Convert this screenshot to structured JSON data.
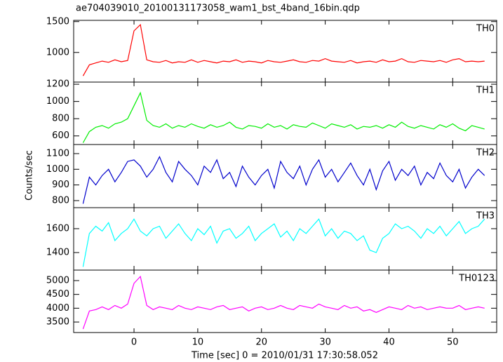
{
  "chart_data": [
    {
      "type": "line",
      "title": "ae704039010_20100131173058_wam1_bst_4band_16bin.qdp",
      "x": [
        -8,
        -7,
        -6,
        -5,
        -4,
        -3,
        -2,
        -1,
        0,
        1,
        2,
        3,
        4,
        5,
        6,
        7,
        8,
        9,
        10,
        11,
        12,
        13,
        14,
        15,
        16,
        17,
        18,
        19,
        20,
        21,
        22,
        23,
        24,
        25,
        26,
        27,
        28,
        29,
        30,
        31,
        32,
        33,
        34,
        35,
        36,
        37,
        38,
        39,
        40,
        41,
        42,
        43,
        44,
        45,
        46,
        47,
        48,
        49,
        50,
        51,
        52,
        53,
        54,
        55
      ],
      "series": [
        {
          "name": "TH0",
          "color": "#ff0000",
          "values": [
            620,
            800,
            830,
            860,
            840,
            880,
            850,
            870,
            1350,
            1450,
            880,
            850,
            840,
            870,
            830,
            850,
            840,
            880,
            840,
            870,
            850,
            830,
            860,
            850,
            880,
            840,
            860,
            850,
            830,
            870,
            850,
            840,
            860,
            880,
            850,
            840,
            870,
            860,
            900,
            860,
            850,
            840,
            870,
            830,
            850,
            860,
            840,
            880,
            850,
            860,
            900,
            850,
            840,
            870,
            860,
            850,
            870,
            840,
            880,
            900,
            850,
            860,
            850,
            860
          ]
        }
      ],
      "xlim": [
        -9.47,
        56.9
      ],
      "ylim": [
        520,
        1520
      ],
      "yticks": [
        1000,
        1500
      ]
    },
    {
      "type": "line",
      "x": [
        -8,
        -7,
        -6,
        -5,
        -4,
        -3,
        -2,
        -1,
        0,
        1,
        2,
        3,
        4,
        5,
        6,
        7,
        8,
        9,
        10,
        11,
        12,
        13,
        14,
        15,
        16,
        17,
        18,
        19,
        20,
        21,
        22,
        23,
        24,
        25,
        26,
        27,
        28,
        29,
        30,
        31,
        32,
        33,
        34,
        35,
        36,
        37,
        38,
        39,
        40,
        41,
        42,
        43,
        44,
        45,
        46,
        47,
        48,
        49,
        50,
        51,
        52,
        53,
        54,
        55
      ],
      "series": [
        {
          "name": "TH1",
          "color": "#00ee00",
          "values": [
            520,
            650,
            700,
            720,
            690,
            740,
            760,
            800,
            950,
            1100,
            780,
            720,
            700,
            740,
            690,
            720,
            700,
            740,
            710,
            690,
            730,
            700,
            720,
            760,
            700,
            680,
            720,
            710,
            690,
            740,
            700,
            720,
            680,
            730,
            710,
            700,
            750,
            720,
            690,
            740,
            720,
            700,
            730,
            680,
            710,
            700,
            720,
            690,
            730,
            700,
            760,
            710,
            690,
            720,
            700,
            680,
            730,
            700,
            740,
            690,
            660,
            720,
            700,
            680
          ]
        }
      ],
      "xlim": [
        -9.47,
        56.9
      ],
      "ylim": [
        500,
        1225
      ],
      "yticks": [
        600,
        800,
        1000,
        1200
      ]
    },
    {
      "type": "line",
      "ylabel": "Counts/sec",
      "x": [
        -8,
        -7,
        -6,
        -5,
        -4,
        -3,
        -2,
        -1,
        0,
        1,
        2,
        3,
        4,
        5,
        6,
        7,
        8,
        9,
        10,
        11,
        12,
        13,
        14,
        15,
        16,
        17,
        18,
        19,
        20,
        21,
        22,
        23,
        24,
        25,
        26,
        27,
        28,
        29,
        30,
        31,
        32,
        33,
        34,
        35,
        36,
        37,
        38,
        39,
        40,
        41,
        42,
        43,
        44,
        45,
        46,
        47,
        48,
        49,
        50,
        51,
        52,
        53,
        54,
        55
      ],
      "series": [
        {
          "name": "TH2",
          "color": "#0000cc",
          "values": [
            780,
            950,
            900,
            960,
            1000,
            920,
            980,
            1050,
            1060,
            1020,
            950,
            1000,
            1080,
            980,
            920,
            1050,
            1000,
            960,
            900,
            1020,
            980,
            1060,
            940,
            980,
            890,
            1020,
            950,
            900,
            960,
            1000,
            880,
            1050,
            980,
            940,
            1020,
            900,
            1000,
            1060,
            950,
            1000,
            920,
            980,
            1040,
            960,
            900,
            1000,
            870,
            990,
            1050,
            930,
            1000,
            960,
            1020,
            900,
            980,
            940,
            1040,
            960,
            920,
            1000,
            880,
            950,
            1000,
            960
          ]
        }
      ],
      "xlim": [
        -9.47,
        56.9
      ],
      "ylim": [
        755,
        1158
      ],
      "yticks": [
        800,
        900,
        1000,
        1100
      ]
    },
    {
      "type": "line",
      "x": [
        -8,
        -7,
        -6,
        -5,
        -4,
        -3,
        -2,
        -1,
        0,
        1,
        2,
        3,
        4,
        5,
        6,
        7,
        8,
        9,
        10,
        11,
        12,
        13,
        14,
        15,
        16,
        17,
        18,
        19,
        20,
        21,
        22,
        23,
        24,
        25,
        26,
        27,
        28,
        29,
        30,
        31,
        32,
        33,
        34,
        35,
        36,
        37,
        38,
        39,
        40,
        41,
        42,
        43,
        44,
        45,
        46,
        47,
        48,
        49,
        50,
        51,
        52,
        53,
        54,
        55
      ],
      "series": [
        {
          "name": "TH3",
          "color": "#00ffff",
          "values": [
            1280,
            1560,
            1620,
            1580,
            1650,
            1500,
            1560,
            1600,
            1680,
            1580,
            1540,
            1600,
            1620,
            1520,
            1580,
            1640,
            1560,
            1500,
            1600,
            1550,
            1620,
            1480,
            1580,
            1600,
            1520,
            1560,
            1620,
            1500,
            1560,
            1600,
            1640,
            1530,
            1580,
            1500,
            1600,
            1560,
            1620,
            1680,
            1540,
            1600,
            1520,
            1580,
            1560,
            1500,
            1540,
            1420,
            1400,
            1520,
            1560,
            1640,
            1600,
            1620,
            1580,
            1520,
            1600,
            1560,
            1620,
            1540,
            1600,
            1660,
            1560,
            1600,
            1620,
            1680
          ]
        }
      ],
      "xlim": [
        -9.47,
        56.9
      ],
      "ylim": [
        1253,
        1776
      ],
      "yticks": [
        1400,
        1600
      ]
    },
    {
      "type": "line",
      "xlabel": "Time [sec] 0 = 2010/01/31 17:30:58.052",
      "x": [
        -8,
        -7,
        -6,
        -5,
        -4,
        -3,
        -2,
        -1,
        0,
        1,
        2,
        3,
        4,
        5,
        6,
        7,
        8,
        9,
        10,
        11,
        12,
        13,
        14,
        15,
        16,
        17,
        18,
        19,
        20,
        21,
        22,
        23,
        24,
        25,
        26,
        27,
        28,
        29,
        30,
        31,
        32,
        33,
        34,
        35,
        36,
        37,
        38,
        39,
        40,
        41,
        42,
        43,
        44,
        45,
        46,
        47,
        48,
        49,
        50,
        51,
        52,
        53,
        54,
        55
      ],
      "series": [
        {
          "name": "TH0123",
          "color": "#ff00ff",
          "values": [
            3250,
            3900,
            3950,
            4050,
            3950,
            4100,
            4000,
            4150,
            4900,
            5150,
            4100,
            3950,
            4050,
            4000,
            3950,
            4100,
            4000,
            3950,
            4050,
            4000,
            3950,
            4050,
            4100,
            3950,
            4000,
            4050,
            3900,
            4000,
            4050,
            3950,
            4000,
            4100,
            4000,
            3950,
            4100,
            4050,
            4000,
            4150,
            4050,
            4000,
            3950,
            4100,
            4000,
            4050,
            3900,
            3950,
            3850,
            3950,
            4050,
            4000,
            3950,
            4100,
            4000,
            4050,
            3950,
            4000,
            4050,
            4000,
            4000,
            4100,
            3950,
            4000,
            4050,
            4000
          ]
        }
      ],
      "xlim": [
        -9.47,
        56.9
      ],
      "ylim": [
        3120,
        5380
      ],
      "yticks": [
        3500,
        4000,
        4500,
        5000
      ],
      "xticks": [
        0,
        10,
        20,
        30,
        40,
        50
      ]
    }
  ]
}
